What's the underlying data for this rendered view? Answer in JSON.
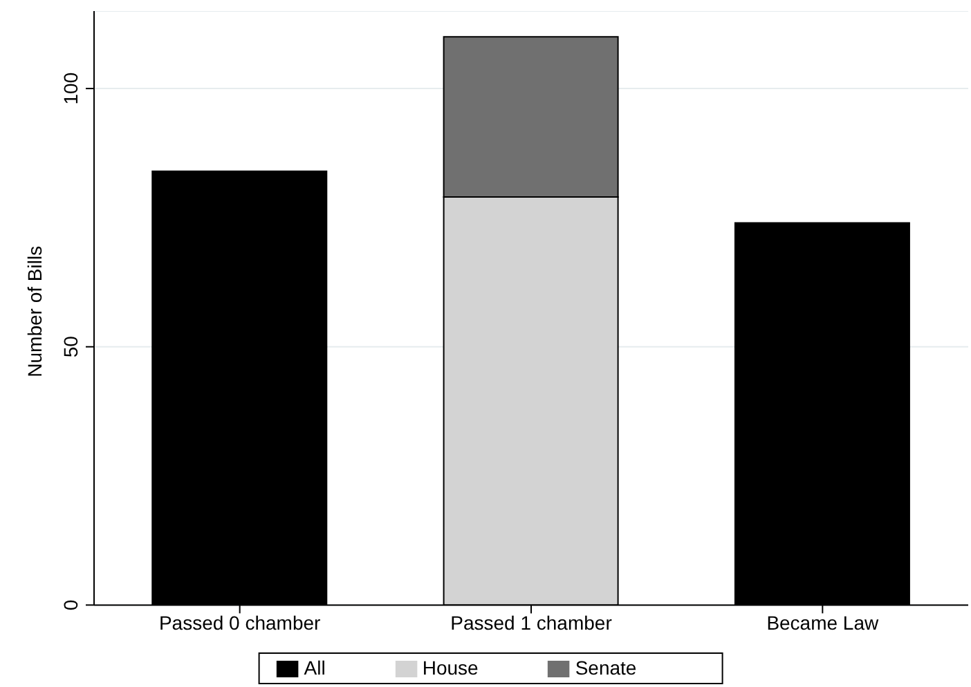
{
  "chart_data": {
    "type": "bar",
    "ylabel": "Number of Bills",
    "categories": [
      "Passed 0 chamber",
      "Passed 1 chamber",
      "Became Law"
    ],
    "stacked": true,
    "series": [
      {
        "name": "House",
        "color": "#d3d3d3",
        "values": [
          null,
          79,
          null
        ]
      },
      {
        "name": "Senate",
        "color": "#707070",
        "values": [
          null,
          31,
          null
        ]
      },
      {
        "name": "All",
        "color": "#000000",
        "values": [
          84,
          null,
          74
        ]
      }
    ],
    "ylim": [
      0,
      115
    ],
    "yticks": [
      0,
      50,
      100
    ],
    "grid": "y",
    "legend": "bottom"
  }
}
